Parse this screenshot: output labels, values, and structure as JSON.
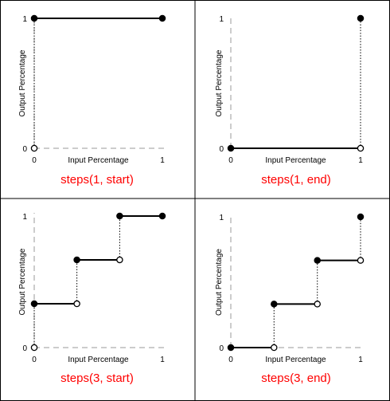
{
  "chart_data": [
    {
      "type": "line",
      "title": "steps(1, start)",
      "xlabel": "Input Percentage",
      "ylabel": "Output Percentage",
      "xlim": [
        0,
        1
      ],
      "ylim": [
        0,
        1
      ],
      "x_ticks": [
        "0",
        "1"
      ],
      "y_ticks": [
        "0",
        "1"
      ],
      "segments": [
        {
          "x0": 0,
          "x1": 1,
          "y": 1,
          "start": "filled",
          "end": "filled"
        }
      ],
      "jumps": [
        {
          "x": 0,
          "from": 0,
          "to": 1
        }
      ],
      "points": [
        {
          "x": 0,
          "y": 0,
          "style": "open"
        }
      ]
    },
    {
      "type": "line",
      "title": "steps(1, end)",
      "xlabel": "Input Percentage",
      "ylabel": "Output Percentage",
      "xlim": [
        0,
        1
      ],
      "ylim": [
        0,
        1
      ],
      "x_ticks": [
        "0",
        "1"
      ],
      "y_ticks": [
        "0",
        "1"
      ],
      "segments": [
        {
          "x0": 0,
          "x1": 1,
          "y": 0,
          "start": "filled",
          "end": "open"
        }
      ],
      "jumps": [
        {
          "x": 1,
          "from": 0,
          "to": 1
        }
      ],
      "points": [
        {
          "x": 1,
          "y": 1,
          "style": "filled"
        }
      ]
    },
    {
      "type": "line",
      "title": "steps(3, start)",
      "xlabel": "Input Percentage",
      "ylabel": "Output Percentage",
      "xlim": [
        0,
        1
      ],
      "ylim": [
        0,
        1
      ],
      "x_ticks": [
        "0",
        "1"
      ],
      "y_ticks": [
        "0",
        "1"
      ],
      "segments": [
        {
          "x0": 0,
          "x1": 0.333,
          "y": 0.333,
          "start": "filled",
          "end": "open"
        },
        {
          "x0": 0.333,
          "x1": 0.667,
          "y": 0.667,
          "start": "filled",
          "end": "open"
        },
        {
          "x0": 0.667,
          "x1": 1,
          "y": 1,
          "start": "filled",
          "end": "filled"
        }
      ],
      "jumps": [
        {
          "x": 0,
          "from": 0,
          "to": 0.333
        },
        {
          "x": 0.333,
          "from": 0.333,
          "to": 0.667
        },
        {
          "x": 0.667,
          "from": 0.667,
          "to": 1
        }
      ],
      "points": [
        {
          "x": 0,
          "y": 0,
          "style": "open"
        }
      ]
    },
    {
      "type": "line",
      "title": "steps(3, end)",
      "xlabel": "Input Percentage",
      "ylabel": "Output Percentage",
      "xlim": [
        0,
        1
      ],
      "ylim": [
        0,
        1
      ],
      "x_ticks": [
        "0",
        "1"
      ],
      "y_ticks": [
        "0",
        "1"
      ],
      "segments": [
        {
          "x0": 0,
          "x1": 0.333,
          "y": 0,
          "start": "filled",
          "end": "open"
        },
        {
          "x0": 0.333,
          "x1": 0.667,
          "y": 0.333,
          "start": "filled",
          "end": "open"
        },
        {
          "x0": 0.667,
          "x1": 1,
          "y": 0.667,
          "start": "filled",
          "end": "open"
        }
      ],
      "jumps": [
        {
          "x": 0.333,
          "from": 0,
          "to": 0.333
        },
        {
          "x": 0.667,
          "from": 0.333,
          "to": 0.667
        },
        {
          "x": 1,
          "from": 0.667,
          "to": 1
        }
      ],
      "points": [
        {
          "x": 1,
          "y": 1,
          "style": "filled"
        }
      ]
    }
  ]
}
